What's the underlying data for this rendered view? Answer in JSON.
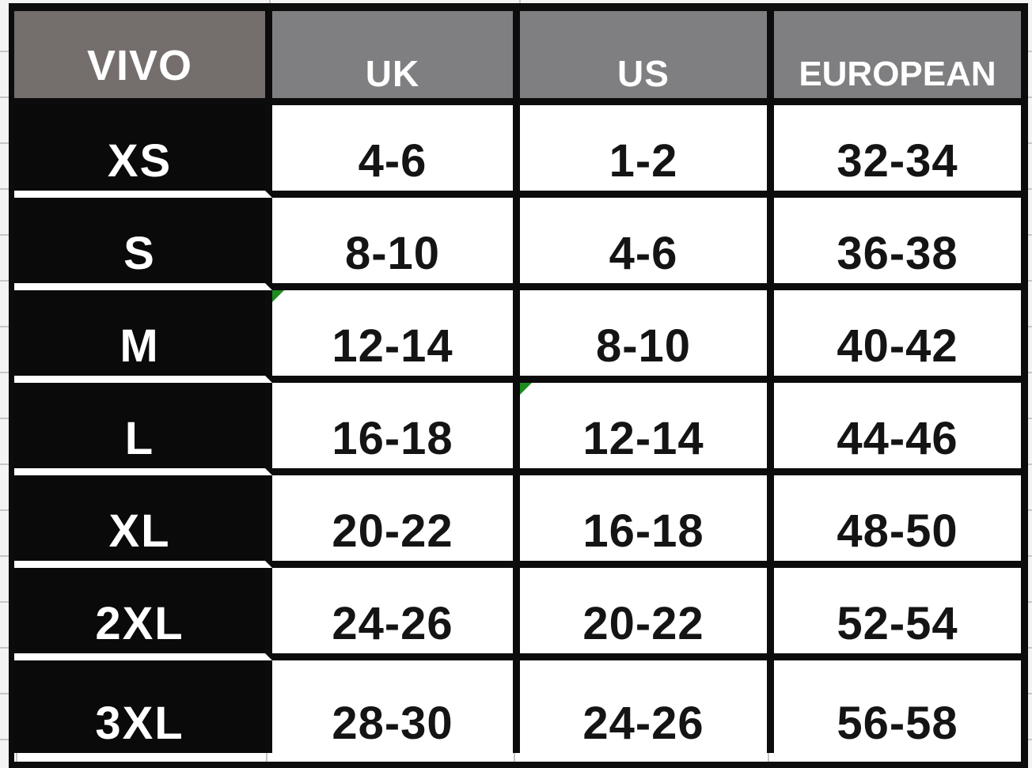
{
  "table": {
    "columns": [
      {
        "label": "VIVO"
      },
      {
        "label": "UK"
      },
      {
        "label": "US"
      },
      {
        "label": "EUROPEAN"
      }
    ],
    "rows": [
      {
        "size": "XS",
        "uk": "4-6",
        "us": "1-2",
        "european": "32-34"
      },
      {
        "size": "S",
        "uk": "8-10",
        "us": "4-6",
        "european": "36-38"
      },
      {
        "size": "M",
        "uk": "12-14",
        "us": "8-10",
        "european": "40-42"
      },
      {
        "size": "L",
        "uk": "16-18",
        "us": "12-14",
        "european": "44-46"
      },
      {
        "size": "XL",
        "uk": "20-22",
        "us": "16-18",
        "european": "48-50"
      },
      {
        "size": "2XL",
        "uk": "24-26",
        "us": "20-22",
        "european": "52-54"
      },
      {
        "size": "3XL",
        "uk": "28-30",
        "us": "24-26",
        "european": "56-58"
      }
    ],
    "flags": [
      {
        "row": 2,
        "col": "uk"
      },
      {
        "row": 3,
        "col": "us"
      }
    ]
  },
  "colors": {
    "header_vivo_bg": "#746e6d",
    "header_bg": "#7f7f81",
    "row_label_bg": "#0a0a0a",
    "grid_line": "#0c0c0c",
    "cell_bg": "#ffffff",
    "flag_green": "#1d8c1f",
    "sheet_bg": "#f3f3f3",
    "sheet_gridline": "#c6c6c6"
  },
  "chart_data": {
    "type": "table",
    "columns": [
      "VIVO",
      "UK",
      "US",
      "EUROPEAN"
    ],
    "rows": [
      [
        "XS",
        "4-6",
        "1-2",
        "32-34"
      ],
      [
        "S",
        "8-10",
        "4-6",
        "36-38"
      ],
      [
        "M",
        "12-14",
        "8-10",
        "40-42"
      ],
      [
        "L",
        "16-18",
        "12-14",
        "44-46"
      ],
      [
        "XL",
        "20-22",
        "16-18",
        "48-50"
      ],
      [
        "2XL",
        "24-26",
        "20-22",
        "52-54"
      ],
      [
        "3XL",
        "28-30",
        "24-26",
        "56-58"
      ]
    ]
  }
}
